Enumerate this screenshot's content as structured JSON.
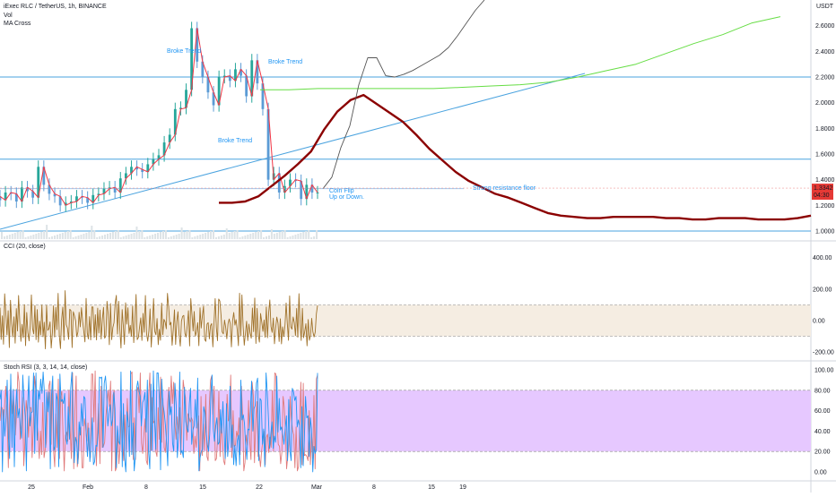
{
  "header": {
    "title": "iExec RLC / TetherUS, 1h, BINANCE",
    "vol_label": "Vol",
    "ma_label": "MA Cross"
  },
  "panes": {
    "price_unit": "USDT",
    "cci_title": "CCI (20, close)",
    "stoch_title": "Stoch RSI (3, 3, 14, 14, close)"
  },
  "price_badge": {
    "value": "1.3342",
    "countdown": "04:30"
  },
  "colors": {
    "price_up": "#26a69a",
    "price_down": "#5b9bd5",
    "ma_fast": "#f23645",
    "ma_slow": "#8b0000",
    "projection": "#555555",
    "green_path": "#66dd44",
    "hline": "#4aa3df",
    "cci_line": "#a0722a",
    "cci_band": "#f5ede2",
    "stoch_k": "#2196f3",
    "stoch_d": "#e07a7a",
    "stoch_band": "#e6c8ff",
    "badge": "#e53935"
  },
  "chart_data": [
    {
      "type": "line",
      "pane": "price",
      "ylim": [
        0.93,
        2.8
      ],
      "yticks": [
        "2.6000",
        "2.4000",
        "2.2000",
        "2.0000",
        "1.8000",
        "1.6000",
        "1.4000",
        "1.2000",
        "1.0000"
      ],
      "xticks": [
        "25",
        "Feb",
        "8",
        "15",
        "22",
        "Mar",
        "8",
        "15",
        "19"
      ],
      "annotations": [
        "Broke Trend",
        "Broke Trend",
        "Broke Trend",
        "Strong resistance floor",
        "Coin Flip",
        "Up or Down."
      ],
      "horizontal_levels": [
        2.2,
        1.56,
        1.33,
        1.0
      ],
      "series": [
        {
          "values": [
            1.27,
            1.24,
            1.3,
            1.29,
            1.23,
            1.34,
            1.31,
            1.26,
            1.5,
            1.36,
            1.29,
            1.27,
            1.2,
            1.22,
            1.23,
            1.27,
            1.26,
            1.22,
            1.28,
            1.29,
            1.33,
            1.34,
            1.3,
            1.41,
            1.45,
            1.5,
            1.48,
            1.46,
            1.52,
            1.56,
            1.59,
            1.69,
            1.75,
            1.95,
            1.96,
            2.1,
            2.58,
            2.32,
            2.2,
            2.08,
            1.98,
            2.2,
            2.21,
            2.17,
            2.26,
            2.21,
            2.05,
            2.33,
            2.15,
            1.95,
            1.4,
            1.45,
            1.3,
            1.35,
            1.4,
            1.39,
            1.25,
            1.36,
            1.3
          ]
        },
        {
          "values": [
            1.22,
            1.22,
            1.23,
            1.27,
            1.35,
            1.43,
            1.52,
            1.62,
            1.79,
            1.93,
            2.02,
            2.06,
            1.99,
            1.92,
            1.85,
            1.75,
            1.64,
            1.55,
            1.46,
            1.39,
            1.34,
            1.29,
            1.26,
            1.22,
            1.18,
            1.14,
            1.12,
            1.11,
            1.1,
            1.1,
            1.11,
            1.11,
            1.11,
            1.11,
            1.1,
            1.1,
            1.09,
            1.09,
            1.1,
            1.1,
            1.1,
            1.09,
            1.09,
            1.09,
            1.1,
            1.12
          ]
        },
        {
          "values": [
            2.1,
            2.1,
            2.11,
            2.11,
            2.11,
            2.11,
            2.11,
            2.12,
            2.13,
            2.14,
            2.16,
            2.2,
            2.25,
            2.3,
            2.38,
            2.46,
            2.53,
            2.62,
            2.67
          ]
        },
        {
          "values": [
            1.33,
            1.42,
            1.65,
            1.82,
            2.14,
            2.35,
            2.35,
            2.21,
            2.2,
            2.22,
            2.25,
            2.29,
            2.33,
            2.37,
            2.43,
            2.52,
            2.62,
            2.72,
            2.8
          ]
        }
      ]
    },
    {
      "type": "line",
      "pane": "cci",
      "ylim": [
        -250,
        500
      ],
      "yticks": [
        "400.00",
        "200.00",
        "0.00",
        "-200.00"
      ],
      "band": [
        -100,
        100
      ],
      "series": [
        {
          "values": [
            82,
            -120,
            30,
            -150,
            170,
            45,
            -90,
            63,
            -171,
            129,
            -20,
            -104,
            24,
            -143,
            76,
            -66,
            159,
            -3,
            -132,
            -24,
            -109,
            101,
            -159,
            51,
            -75,
            -129,
            -33,
            163,
            -50,
            -84,
            95,
            -121,
            70,
            -137,
            -4,
            -91,
            99,
            -103,
            -10,
            -179,
            96,
            -62,
            -52,
            -8,
            -174,
            -77,
            93,
            -104,
            84,
            -57,
            173,
            -92,
            -178,
            7,
            85,
            -125,
            190,
            -26,
            -48,
            -119,
            72,
            63,
            -171,
            56,
            31,
            -2,
            -102,
            -72,
            53,
            -40,
            82,
            -4,
            -67,
            -135,
            141,
            -79,
            -117,
            25,
            -123,
            87,
            86,
            -107,
            37,
            -123,
            79,
            -79,
            67,
            -117,
            6,
            84,
            -112,
            -98,
            122,
            44,
            -153,
            108,
            -121,
            -45,
            -13,
            110,
            160,
            -85,
            122,
            -55,
            -174,
            70,
            -35,
            -151,
            113,
            -23,
            81,
            -81,
            -30,
            -100,
            92,
            -140,
            -6,
            166,
            -121,
            -107,
            -41,
            17,
            -126,
            46,
            -74,
            159,
            -82,
            -131,
            -65,
            74,
            -168,
            -41,
            140,
            -68,
            -89,
            13,
            -153,
            -55,
            -125,
            111,
            -89,
            8,
            -9,
            -52,
            173,
            91,
            -27,
            -11,
            -157,
            -58,
            69,
            -151,
            -6,
            56,
            -90,
            -162,
            -3,
            27,
            33,
            -81,
            -104,
            -29,
            63,
            -161,
            140,
            41,
            -66,
            58,
            -98,
            -69,
            -13,
            -159,
            81,
            -47,
            28,
            92,
            -120,
            -132,
            -22,
            -13,
            -116,
            -32,
            -19,
            -167,
            -13,
            140,
            -45,
            -128,
            137,
            124,
            35,
            -72,
            -84,
            3,
            -43,
            -116,
            -21,
            10,
            -20,
            -167,
            -1,
            51,
            -29,
            6,
            -60,
            -159,
            174,
            -97,
            163,
            -32,
            -156,
            -83,
            -4,
            -127,
            -23,
            -79,
            -112,
            80,
            -70,
            143,
            -145,
            78,
            -90,
            -137,
            45,
            -8,
            -69,
            4,
            -106,
            87,
            -109,
            49,
            131,
            -38,
            -75,
            16,
            -147,
            -47,
            22,
            -15,
            -133,
            12,
            -148,
            -39,
            -101,
            -31,
            112,
            -19,
            -125,
            157,
            -39,
            -54,
            23,
            -12,
            -95,
            77,
            -106,
            171,
            -7,
            -126,
            78,
            -109,
            -70,
            -20,
            -160,
            7,
            -125,
            -93,
            14,
            -71,
            -104,
            -74,
            43,
            96
          ]
        }
      ]
    },
    {
      "type": "line",
      "pane": "stoch_rsi",
      "ylim": [
        -8,
        108
      ],
      "yticks": [
        "100.00",
        "80.00",
        "60.00",
        "40.00",
        "20.00",
        "0.00"
      ],
      "band": [
        20,
        80
      ],
      "series": [
        {
          "values": [
            71,
            80,
            0,
            61,
            35,
            53,
            90,
            34,
            13,
            96,
            24,
            81,
            5,
            61,
            81,
            53,
            62,
            44,
            33,
            95,
            71,
            54,
            1,
            60,
            94,
            45,
            58,
            59,
            97,
            18,
            97,
            31,
            80,
            71,
            91,
            77,
            98,
            79,
            24,
            78,
            59,
            78,
            3,
            75,
            94,
            21,
            25,
            77,
            70,
            5,
            96,
            69,
            71,
            67,
            77,
            33,
            27,
            64,
            32,
            82,
            98,
            44,
            9,
            34,
            29,
            8,
            49,
            36,
            67,
            45,
            74,
            72,
            36,
            15,
            43,
            10,
            28,
            53,
            7,
            10,
            26,
            25,
            39,
            93,
            92,
            93,
            24,
            87,
            94,
            77,
            45,
            57,
            66,
            45,
            52,
            78,
            62,
            4,
            45,
            30,
            27,
            98,
            5,
            67,
            13,
            0,
            59,
            48,
            15,
            99,
            17,
            48,
            1,
            16,
            82,
            89,
            79,
            74,
            45,
            68,
            71,
            78,
            39,
            90,
            20,
            3,
            86,
            21,
            99,
            52,
            22,
            97,
            97,
            71,
            2,
            91,
            66,
            59,
            47,
            29,
            6,
            79,
            56,
            64,
            28,
            20,
            87,
            66,
            14,
            34,
            98,
            18,
            21,
            14,
            83,
            49,
            43,
            39,
            67,
            82,
            27,
            41,
            45,
            71,
            43,
            92,
            1,
            14,
            20,
            22,
            64,
            58,
            39,
            27,
            20,
            37,
            77,
            95,
            42,
            30,
            45,
            53,
            27,
            29,
            61,
            38,
            69,
            42,
            13,
            67,
            15,
            31,
            84,
            24,
            46,
            7,
            26,
            6,
            30,
            36,
            7,
            90,
            51,
            56,
            48,
            27,
            12,
            42,
            41,
            60,
            89,
            40,
            62,
            65,
            87,
            92,
            11,
            72,
            70,
            27,
            42,
            5,
            97,
            79,
            54,
            23,
            37,
            49,
            23,
            35,
            29,
            94,
            39,
            72,
            41,
            44,
            36,
            27,
            42,
            55,
            11,
            71,
            20,
            11,
            82,
            78,
            70,
            74,
            44,
            51,
            45,
            4,
            64,
            6,
            31,
            74,
            53,
            55,
            15,
            53,
            42,
            0,
            25,
            18,
            22,
            97
          ]
        },
        {
          "values": [
            50,
            64,
            62,
            49,
            67,
            84,
            55,
            4,
            65,
            85,
            57,
            75,
            64,
            36,
            59,
            98,
            88,
            32,
            47,
            73,
            6,
            29,
            70,
            58,
            34,
            63,
            63,
            14,
            44,
            94,
            81,
            48,
            38,
            13,
            40,
            17,
            68,
            14,
            22,
            29,
            64,
            84,
            89,
            27,
            89,
            21,
            5,
            57,
            24,
            91,
            13,
            74,
            79,
            35,
            1,
            36,
            39,
            30,
            80,
            41,
            13,
            97,
            3,
            58,
            94,
            5,
            14,
            42,
            44,
            4,
            4,
            52,
            44,
            30,
            48,
            22,
            14,
            96,
            96,
            49,
            99,
            6,
            40,
            67,
            8,
            84,
            24,
            25,
            29,
            54,
            68,
            80,
            64,
            89,
            1,
            75,
            80,
            1,
            4,
            41,
            8,
            25,
            60,
            29,
            11,
            56,
            22,
            72,
            44,
            45,
            96,
            98,
            12,
            53,
            12,
            79,
            83,
            58,
            97,
            28,
            18,
            36,
            52,
            11,
            7,
            74,
            97,
            21,
            73,
            48,
            50,
            20,
            15,
            63,
            32,
            93,
            29,
            72,
            24,
            19,
            36,
            68,
            83,
            59,
            94,
            67,
            88,
            49,
            32,
            54,
            37,
            63,
            17,
            49,
            90,
            80,
            73,
            31,
            57,
            53,
            49,
            53,
            50,
            18,
            35,
            24,
            43,
            55,
            1,
            74,
            16,
            47,
            21,
            76,
            15,
            11,
            64,
            90,
            94,
            56,
            84,
            11,
            13,
            33,
            79,
            15,
            47,
            34,
            11,
            7,
            24,
            76,
            50,
            52,
            95,
            14,
            60,
            25,
            26,
            40,
            34,
            53,
            17,
            84,
            55,
            1,
            9,
            36,
            26,
            70,
            30,
            12,
            88,
            75,
            9,
            50,
            69,
            15,
            17,
            5,
            21,
            30,
            40,
            7,
            34,
            37,
            19,
            34,
            24,
            80,
            20,
            97,
            96,
            48,
            27,
            25,
            8,
            19,
            74,
            64,
            41,
            3,
            16,
            28,
            74,
            52,
            41,
            36,
            4,
            44,
            1,
            5,
            47,
            88,
            7,
            87,
            16,
            17,
            15,
            11,
            60,
            7,
            38,
            13,
            75,
            3,
            91,
            95
          ]
        }
      ]
    }
  ]
}
